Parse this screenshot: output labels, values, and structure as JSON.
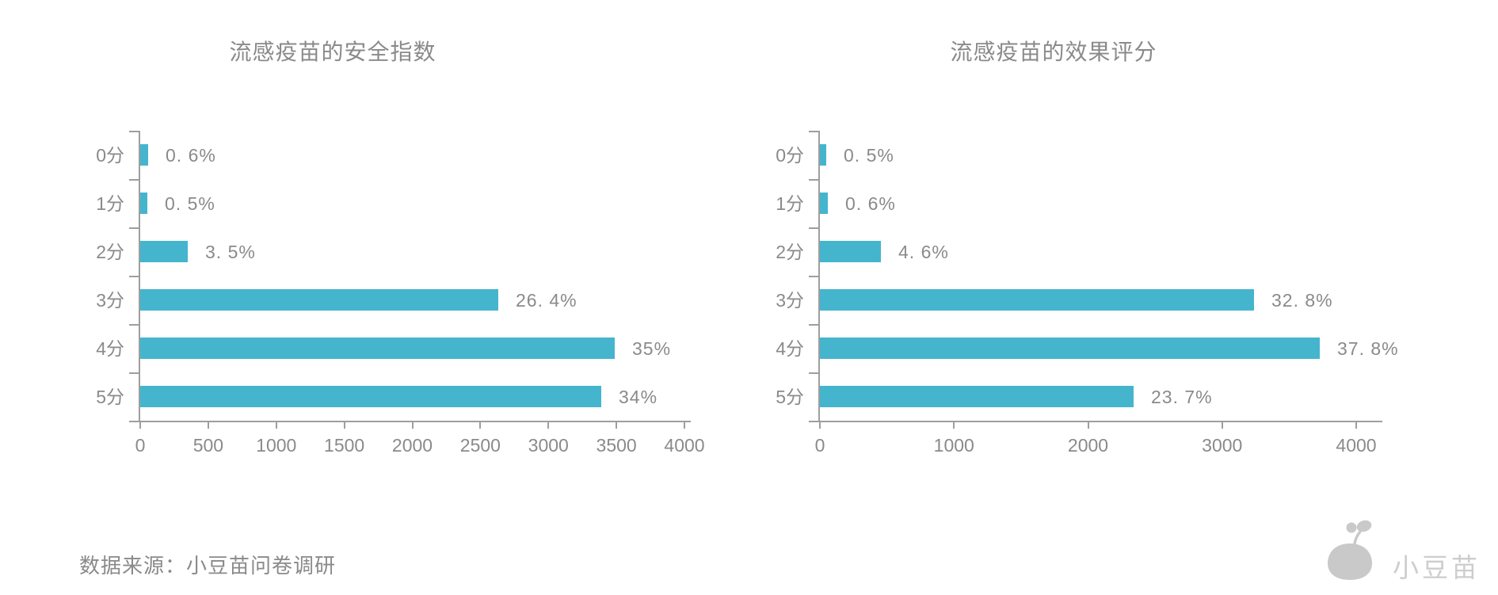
{
  "page": {
    "background": "#ffffff"
  },
  "colors": {
    "bar": "#45b5cd",
    "axis": "#9e9e9e",
    "text": "#8a8a8a",
    "brand_text": "#cdcdcd",
    "logo": "#c9c9c9"
  },
  "source_note": "数据来源：小豆苗问卷调研",
  "brand": {
    "name": "小豆苗",
    "icon": "sprout-bean-logo"
  },
  "chart_data": [
    {
      "type": "bar",
      "orientation": "horizontal",
      "title": "流感疫苗的安全指数",
      "categories": [
        "0分",
        "1分",
        "2分",
        "3分",
        "4分",
        "5分"
      ],
      "values": [
        60,
        50,
        349,
        2632,
        3490,
        3390
      ],
      "labels": [
        "0. 6%",
        "0. 5%",
        "3. 5%",
        "26. 4%",
        "35%",
        "34%"
      ],
      "percent_values": [
        0.6,
        0.5,
        3.5,
        26.4,
        35,
        34
      ],
      "x_ticks": [
        0,
        500,
        1000,
        1500,
        2000,
        2500,
        3000,
        3500,
        4000
      ],
      "xlim": [
        0,
        4000
      ],
      "xlabel": "",
      "ylabel": "",
      "grid": false,
      "legend": false,
      "note": "bar lengths are respondent counts (estimated from axis); data labels show percentages"
    },
    {
      "type": "bar",
      "orientation": "horizontal",
      "title": "流感疫苗的效果评分",
      "categories": [
        "0分",
        "1分",
        "2分",
        "3分",
        "4分",
        "5分"
      ],
      "values": [
        49,
        59,
        454,
        3238,
        3731,
        2339
      ],
      "labels": [
        "0. 5%",
        "0. 6%",
        "4. 6%",
        "32. 8%",
        "37. 8%",
        "23. 7%"
      ],
      "percent_values": [
        0.5,
        0.6,
        4.6,
        32.8,
        37.8,
        23.7
      ],
      "x_ticks": [
        0,
        1000,
        2000,
        3000,
        4000
      ],
      "xlim": [
        0,
        4000
      ],
      "xlabel": "",
      "ylabel": "",
      "grid": false,
      "legend": false,
      "note": "bar lengths are respondent counts (estimated from axis); data labels show percentages"
    }
  ]
}
